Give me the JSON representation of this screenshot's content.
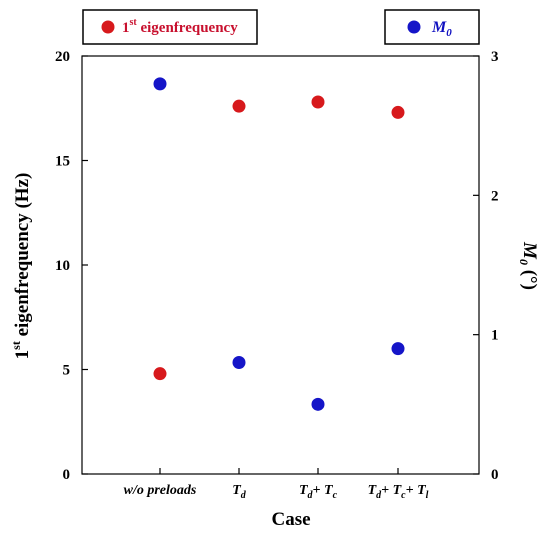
{
  "chart_data": {
    "type": "scatter",
    "categories": [
      "w/o preloads",
      "Td",
      "Td+ Tc",
      "Td+ Tc+ Tl"
    ],
    "xlabel": "Case",
    "ylabel_left": "1st eigenfrequency (Hz)",
    "ylabel_right": "M0 (°)",
    "ylim_left": [
      0,
      20
    ],
    "ylim_right": [
      0,
      3
    ],
    "yticks_left": [
      0,
      5,
      10,
      15,
      20
    ],
    "yticks_right": [
      0,
      1,
      2,
      3
    ],
    "grid": false,
    "legend_placement": "top, outside",
    "series": [
      {
        "name": "1st eigenfrequency",
        "axis": "left",
        "color": "#d7191c",
        "values": [
          4.8,
          17.6,
          17.8,
          17.3
        ]
      },
      {
        "name": "M0",
        "axis": "right",
        "color": "#1515c8",
        "values": [
          2.8,
          0.8,
          0.5,
          0.9
        ]
      }
    ]
  },
  "legend": {
    "red_main": "1",
    "red_sup": "st",
    "red_rest": " eigenfrequency",
    "blue_main": "M",
    "blue_sub": "0"
  },
  "axis_titles": {
    "x": "Case",
    "left_sup": "st",
    "left_main": "1",
    "left_rest": " eigenfrequency (Hz)",
    "right_main": "M",
    "right_sub": "0",
    "right_rest": " (°)"
  },
  "cat_parts": [
    {
      "main": "w/o preloads"
    },
    {
      "main": "T",
      "sub": "d"
    },
    {
      "main": "T",
      "sub": "d",
      "plus1": "+ T",
      "sub2": "c"
    },
    {
      "main": "T",
      "sub": "d",
      "plus1": "+ T",
      "sub2": "c",
      "plus2": "+ T",
      "sub3": "l"
    }
  ]
}
